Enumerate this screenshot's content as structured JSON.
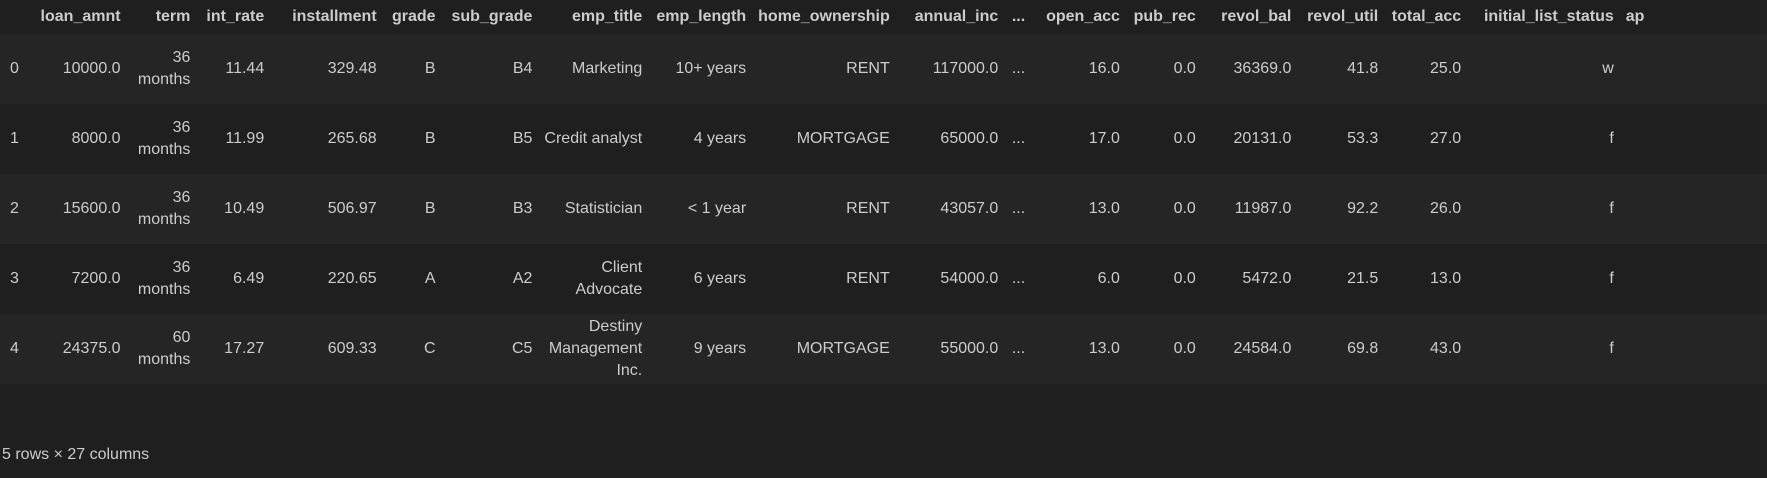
{
  "table": {
    "headers": {
      "index": "",
      "loan_amnt": "loan_amnt",
      "term": "term",
      "int_rate": "int_rate",
      "installment": "installment",
      "grade": "grade",
      "sub_grade": "sub_grade",
      "emp_title": "emp_title",
      "emp_length": "emp_length",
      "home_ownership": "home_ownership",
      "annual_inc": "annual_inc",
      "ellipsis": "...",
      "open_acc": "open_acc",
      "pub_rec": "pub_rec",
      "revol_bal": "revol_bal",
      "revol_util": "revol_util",
      "total_acc": "total_acc",
      "initial_list_status": "initial_list_status",
      "ap": "ap"
    },
    "rows": [
      {
        "index": "0",
        "loan_amnt": "10000.0",
        "term": "36 months",
        "int_rate": "11.44",
        "installment": "329.48",
        "grade": "B",
        "sub_grade": "B4",
        "emp_title": "Marketing",
        "emp_length": "10+ years",
        "home_ownership": "RENT",
        "annual_inc": "117000.0",
        "ellipsis": "...",
        "open_acc": "16.0",
        "pub_rec": "0.0",
        "revol_bal": "36369.0",
        "revol_util": "41.8",
        "total_acc": "25.0",
        "initial_list_status": "w",
        "ap": ""
      },
      {
        "index": "1",
        "loan_amnt": "8000.0",
        "term": "36 months",
        "int_rate": "11.99",
        "installment": "265.68",
        "grade": "B",
        "sub_grade": "B5",
        "emp_title": "Credit analyst",
        "emp_length": "4 years",
        "home_ownership": "MORTGAGE",
        "annual_inc": "65000.0",
        "ellipsis": "...",
        "open_acc": "17.0",
        "pub_rec": "0.0",
        "revol_bal": "20131.0",
        "revol_util": "53.3",
        "total_acc": "27.0",
        "initial_list_status": "f",
        "ap": ""
      },
      {
        "index": "2",
        "loan_amnt": "15600.0",
        "term": "36 months",
        "int_rate": "10.49",
        "installment": "506.97",
        "grade": "B",
        "sub_grade": "B3",
        "emp_title": "Statistician",
        "emp_length": "< 1 year",
        "home_ownership": "RENT",
        "annual_inc": "43057.0",
        "ellipsis": "...",
        "open_acc": "13.0",
        "pub_rec": "0.0",
        "revol_bal": "11987.0",
        "revol_util": "92.2",
        "total_acc": "26.0",
        "initial_list_status": "f",
        "ap": ""
      },
      {
        "index": "3",
        "loan_amnt": "7200.0",
        "term": "36 months",
        "int_rate": "6.49",
        "installment": "220.65",
        "grade": "A",
        "sub_grade": "A2",
        "emp_title": "Client Advocate",
        "emp_length": "6 years",
        "home_ownership": "RENT",
        "annual_inc": "54000.0",
        "ellipsis": "...",
        "open_acc": "6.0",
        "pub_rec": "0.0",
        "revol_bal": "5472.0",
        "revol_util": "21.5",
        "total_acc": "13.0",
        "initial_list_status": "f",
        "ap": ""
      },
      {
        "index": "4",
        "loan_amnt": "24375.0",
        "term": "60 months",
        "int_rate": "17.27",
        "installment": "609.33",
        "grade": "C",
        "sub_grade": "C5",
        "emp_title": "Destiny Management Inc.",
        "emp_length": "9 years",
        "home_ownership": "MORTGAGE",
        "annual_inc": "55000.0",
        "ellipsis": "...",
        "open_acc": "13.0",
        "pub_rec": "0.0",
        "revol_bal": "24584.0",
        "revol_util": "69.8",
        "total_acc": "43.0",
        "initial_list_status": "f",
        "ap": ""
      }
    ]
  },
  "footer": {
    "shape_text": "5 rows × 27 columns"
  },
  "colors": {
    "background": "#1f1f1f",
    "row_alt": "#252525",
    "text": "#cccccc"
  }
}
